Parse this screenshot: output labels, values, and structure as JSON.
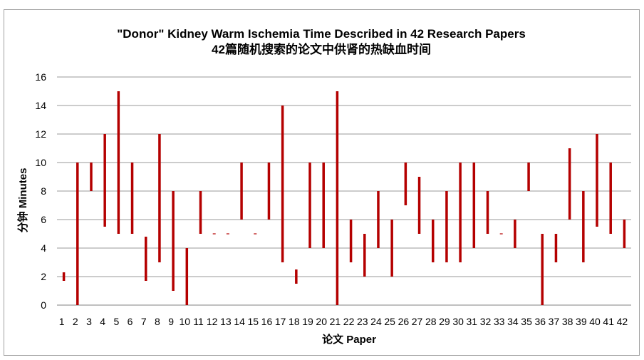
{
  "chart_data": {
    "type": "bar",
    "subtype": "floating-range",
    "title": "\"Donor\" Kidney Warm Ischemia Time Described in 42 Research Papers",
    "subtitle": "42篇随机搜索的论文中供肾的热缺血时间",
    "xlabel": "论文 Paper",
    "ylabel": "分钟 Minutes",
    "ylim": [
      0,
      16
    ],
    "yticks": [
      0,
      2,
      4,
      6,
      8,
      10,
      12,
      14,
      16
    ],
    "grid": true,
    "legend": "none",
    "bar_color": "#b40000",
    "categories": [
      "1",
      "2",
      "3",
      "4",
      "5",
      "6",
      "7",
      "8",
      "9",
      "10",
      "11",
      "12",
      "13",
      "14",
      "15",
      "16",
      "17",
      "18",
      "19",
      "20",
      "21",
      "22",
      "23",
      "24",
      "25",
      "26",
      "27",
      "28",
      "29",
      "30",
      "31",
      "32",
      "33",
      "34",
      "35",
      "36",
      "37",
      "38",
      "39",
      "40",
      "41",
      "42"
    ],
    "series": [
      {
        "low": [
          1.7,
          0,
          8,
          5.5,
          5,
          5,
          1.7,
          3,
          1,
          0,
          5,
          5,
          5,
          6,
          5,
          6,
          3,
          1.5,
          4,
          4,
          0,
          3,
          2,
          4,
          2,
          7,
          5,
          3,
          3,
          3,
          4,
          5,
          5,
          4,
          8,
          0,
          3,
          6,
          3,
          5.5,
          5,
          4
        ],
        "high": [
          2.3,
          10,
          10,
          12,
          15,
          10,
          4.8,
          12,
          8,
          4,
          8,
          5,
          5,
          10,
          5,
          10,
          14,
          2.5,
          10,
          10,
          15,
          6,
          5,
          8,
          6,
          10,
          9,
          6,
          8,
          10,
          10,
          8,
          5,
          6,
          10,
          5,
          5,
          11,
          8,
          12,
          10,
          6
        ]
      }
    ]
  }
}
